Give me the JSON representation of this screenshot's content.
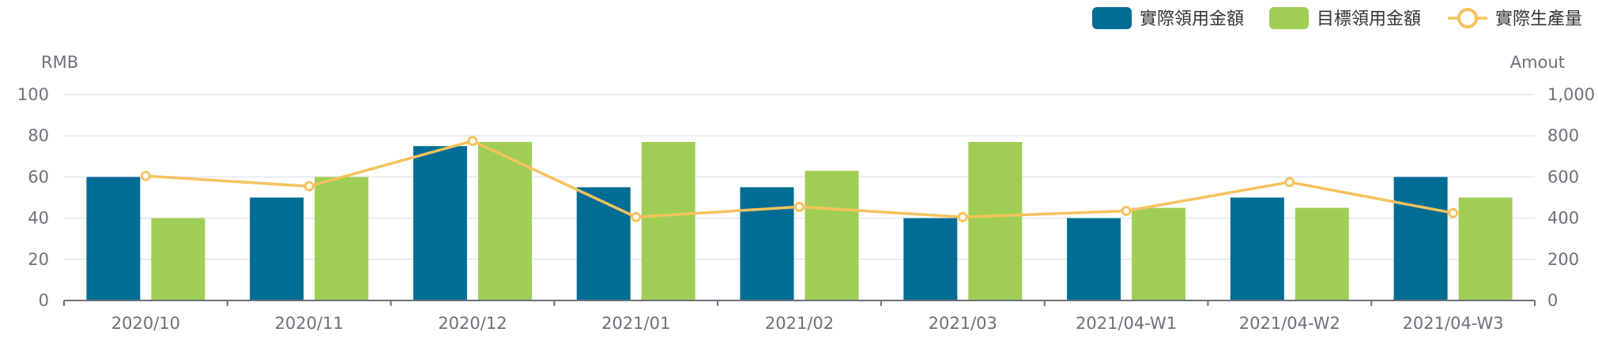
{
  "chart_data": {
    "type": "bar",
    "categories": [
      "2020/10",
      "2020/11",
      "2020/12",
      "2021/01",
      "2021/02",
      "2021/03",
      "2021/04-W1",
      "2021/04-W2",
      "2021/04-W3"
    ],
    "series": [
      {
        "name": "實際領用金額",
        "type": "bar",
        "axis": "left",
        "color": "#006d95",
        "values": [
          60,
          50,
          75,
          55,
          55,
          40,
          40,
          50,
          60
        ]
      },
      {
        "name": "目標領用金額",
        "type": "bar",
        "axis": "left",
        "color": "#a0ce55",
        "values": [
          40,
          60,
          77,
          77,
          63,
          77,
          45,
          45,
          50
        ]
      },
      {
        "name": "實際生產量",
        "type": "line",
        "axis": "right",
        "color": "#f6c35c",
        "values": [
          605,
          555,
          775,
          405,
          455,
          405,
          435,
          575,
          425
        ]
      }
    ],
    "ylabel": "RMB",
    "y2label": "Amout",
    "ylim": [
      0,
      100
    ],
    "y2lim": [
      0,
      1000
    ],
    "yticks": [
      "0",
      "20",
      "40",
      "60",
      "80",
      "100"
    ],
    "y2ticks": [
      "0",
      "200",
      "400",
      "600",
      "800",
      "1,000"
    ],
    "grid": true,
    "legend": "top-right"
  }
}
